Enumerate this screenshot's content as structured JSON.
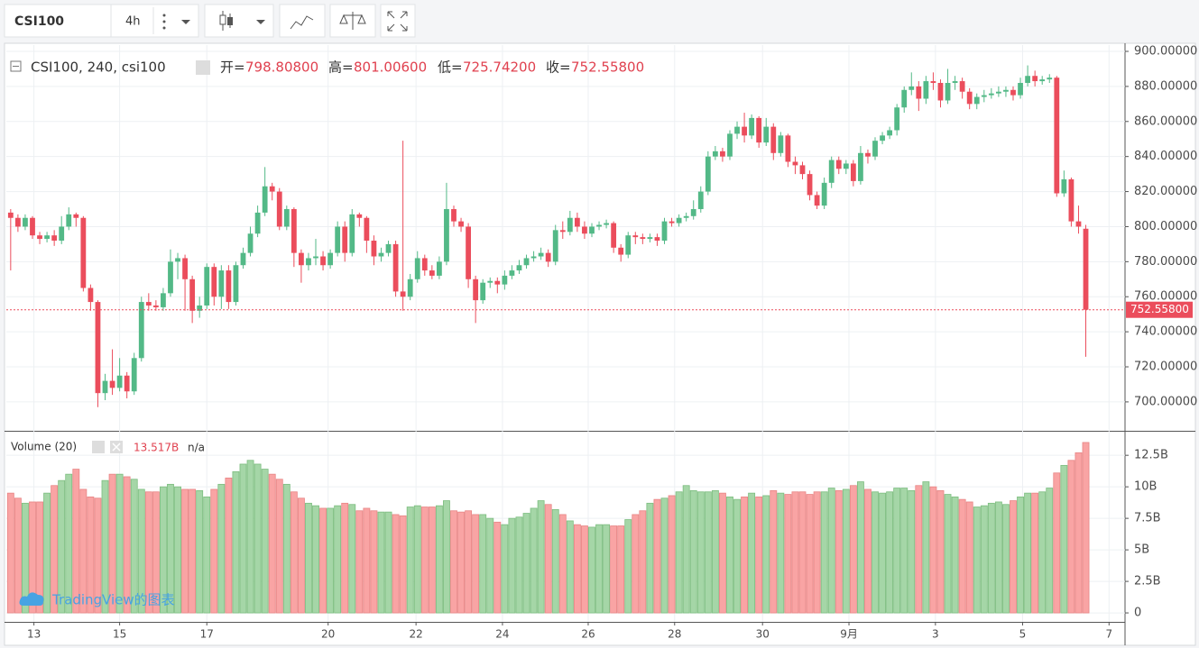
{
  "toolbar": {
    "symbol": "CSI100",
    "interval": "4h"
  },
  "watermark": "TradingView的图表",
  "chart_data": {
    "type": "candlestick",
    "legend": {
      "symbol": "CSI100, 240, csi100",
      "items": [
        {
          "label": "开=",
          "value": "798.80800"
        },
        {
          "label": "高=",
          "value": "801.00600"
        },
        {
          "label": "低=",
          "value": "725.74200"
        },
        {
          "label": "收=",
          "value": "752.55800"
        }
      ]
    },
    "up_color": "#53b987",
    "down_color": "#eb4d5c",
    "open": [
      808,
      805,
      800,
      805,
      795,
      793,
      795,
      792,
      800,
      807,
      805,
      765,
      757,
      705,
      712,
      708,
      715,
      706,
      725,
      757,
      755,
      754,
      762,
      780,
      782,
      770,
      752,
      755,
      777,
      760,
      775,
      757,
      778,
      785,
      796,
      808,
      823,
      820,
      800,
      810,
      785,
      778,
      782,
      783,
      778,
      785,
      800,
      785,
      807,
      805,
      792,
      783,
      785,
      790,
      763,
      760,
      770,
      782,
      775,
      772,
      780,
      810,
      803,
      800,
      770,
      758,
      768,
      769,
      767,
      772,
      775,
      778,
      782,
      783,
      785,
      780,
      798,
      797,
      805,
      800,
      796,
      800,
      801,
      802,
      788,
      784,
      795,
      794,
      793,
      794,
      792,
      803,
      802,
      805,
      806,
      810,
      820,
      840,
      843,
      840,
      853,
      857,
      852,
      862,
      848,
      857,
      842,
      852,
      837,
      835,
      830,
      818,
      812,
      825,
      838,
      833,
      836,
      826,
      842,
      840,
      849,
      852,
      855,
      868,
      878,
      880,
      873,
      883,
      882,
      872,
      882,
      883,
      877,
      870,
      874,
      875,
      876,
      877,
      878,
      875,
      882,
      886,
      883,
      884,
      885,
      819,
      827,
      803,
      798.808
    ],
    "high": [
      810,
      807,
      807,
      806,
      797,
      797,
      798,
      806,
      811,
      808,
      806,
      767,
      758,
      716,
      730,
      725,
      717,
      728,
      760,
      762,
      758,
      765,
      787,
      785,
      784,
      772,
      760,
      779,
      779,
      778,
      778,
      780,
      788,
      800,
      812,
      834,
      825,
      822,
      812,
      811,
      787,
      785,
      793,
      786,
      787,
      803,
      803,
      810,
      808,
      806,
      795,
      788,
      792,
      792,
      849,
      773,
      786,
      784,
      778,
      783,
      825,
      812,
      805,
      802,
      772,
      770,
      771,
      771,
      775,
      778,
      781,
      784,
      786,
      788,
      787,
      801,
      803,
      809,
      808,
      803,
      802,
      803,
      804,
      803,
      790,
      797,
      797,
      796,
      796,
      796,
      805,
      805,
      807,
      808,
      815,
      823,
      843,
      846,
      845,
      855,
      860,
      865,
      864,
      863,
      862,
      859,
      854,
      853,
      840,
      837,
      832,
      820,
      828,
      840,
      840,
      838,
      838,
      846,
      844,
      851,
      854,
      857,
      870,
      880,
      888,
      883,
      886,
      888,
      884,
      890,
      886,
      885,
      879,
      876,
      878,
      879,
      880,
      880,
      880,
      885,
      892,
      889,
      886,
      887,
      886,
      832,
      828,
      812,
      801.006
    ],
    "low": [
      775,
      797,
      798,
      793,
      790,
      791,
      789,
      790,
      798,
      800,
      763,
      752,
      697,
      701,
      704,
      706,
      702,
      704,
      723,
      752,
      752,
      752,
      760,
      770,
      752,
      745,
      748,
      753,
      755,
      753,
      753,
      755,
      776,
      783,
      794,
      806,
      815,
      798,
      798,
      777,
      768,
      775,
      778,
      775,
      776,
      783,
      780,
      783,
      800,
      785,
      778,
      780,
      783,
      760,
      752,
      758,
      768,
      772,
      770,
      770,
      778,
      800,
      797,
      765,
      745,
      756,
      765,
      762,
      764,
      770,
      773,
      776,
      780,
      781,
      777,
      778,
      793,
      795,
      797,
      793,
      794,
      798,
      799,
      785,
      780,
      782,
      790,
      790,
      791,
      789,
      790,
      800,
      800,
      803,
      804,
      808,
      818,
      838,
      837,
      838,
      850,
      848,
      850,
      845,
      846,
      838,
      840,
      834,
      830,
      827,
      815,
      810,
      810,
      822,
      830,
      830,
      823,
      824,
      836,
      838,
      847,
      850,
      852,
      865,
      875,
      866,
      870,
      878,
      868,
      870,
      878,
      873,
      867,
      867,
      871,
      873,
      874,
      874,
      872,
      873,
      880,
      880,
      881,
      882,
      817,
      817,
      800,
      796,
      725.742
    ],
    "close": [
      805,
      800,
      805,
      795,
      793,
      795,
      792,
      800,
      807,
      805,
      765,
      757,
      705,
      712,
      708,
      715,
      706,
      725,
      757,
      755,
      754,
      762,
      780,
      782,
      770,
      752,
      755,
      777,
      760,
      775,
      757,
      778,
      785,
      796,
      808,
      823,
      820,
      800,
      810,
      785,
      778,
      782,
      783,
      778,
      785,
      800,
      785,
      807,
      805,
      792,
      783,
      785,
      790,
      763,
      760,
      770,
      782,
      775,
      772,
      780,
      810,
      803,
      800,
      770,
      758,
      768,
      769,
      767,
      772,
      775,
      778,
      782,
      783,
      785,
      780,
      798,
      797,
      805,
      800,
      796,
      800,
      801,
      802,
      788,
      784,
      795,
      794,
      793,
      794,
      792,
      803,
      802,
      805,
      806,
      810,
      820,
      840,
      843,
      840,
      853,
      857,
      852,
      862,
      848,
      857,
      842,
      852,
      837,
      835,
      830,
      818,
      812,
      825,
      838,
      833,
      836,
      826,
      842,
      840,
      849,
      852,
      855,
      868,
      878,
      880,
      873,
      883,
      882,
      872,
      882,
      883,
      877,
      870,
      874,
      875,
      876,
      877,
      878,
      875,
      882,
      886,
      883,
      884,
      885,
      819,
      827,
      803,
      800,
      752.558
    ],
    "last_price": {
      "value": 752.558,
      "label": "752.55800"
    },
    "ylim": [
      683.5,
      903.6
    ],
    "yticks": [
      {
        "value": 700,
        "label": "700.00000"
      },
      {
        "value": 720,
        "label": "720.00000"
      },
      {
        "value": 740,
        "label": "740.00000"
      },
      {
        "value": 760,
        "label": "760.00000"
      },
      {
        "value": 780,
        "label": "780.00000"
      },
      {
        "value": 800,
        "label": "800.00000"
      },
      {
        "value": 820,
        "label": "820.00000"
      },
      {
        "value": 840,
        "label": "840.00000"
      },
      {
        "value": 860,
        "label": "860.00000"
      },
      {
        "value": 880,
        "label": "880.00000"
      },
      {
        "value": 900,
        "label": "900.00000"
      }
    ],
    "xlim": [
      -0.6,
      153.4
    ],
    "xticks": [
      {
        "value": 3.2,
        "label": "13"
      },
      {
        "value": 15,
        "label": "15"
      },
      {
        "value": 27,
        "label": "17"
      },
      {
        "value": 43.7,
        "label": "20"
      },
      {
        "value": 55.8,
        "label": "22"
      },
      {
        "value": 67.7,
        "label": "24"
      },
      {
        "value": 79.5,
        "label": "26"
      },
      {
        "value": 91.4,
        "label": "28"
      },
      {
        "value": 103.5,
        "label": "30"
      },
      {
        "value": 115.4,
        "label": "9月"
      },
      {
        "value": 127.3,
        "label": "3"
      },
      {
        "value": 139.3,
        "label": "5"
      },
      {
        "value": 151.2,
        "label": "7"
      }
    ],
    "grid": true,
    "volume_title": "Volume (20)",
    "volume_last": "13.517B",
    "volume_ma": "n/a",
    "volume_up_color": "#a5d6a7",
    "volume_down_color": "#f9a4a4",
    "volume": [
      9.5,
      9.1,
      8.7,
      8.8,
      8.8,
      9.5,
      10.1,
      10.5,
      11,
      11.4,
      9.8,
      9.2,
      9.1,
      10.5,
      11,
      11,
      10.8,
      10.6,
      9.8,
      9.6,
      9.6,
      10,
      10.2,
      10,
      9.8,
      9.8,
      9.7,
      9.2,
      9.8,
      10.2,
      10.7,
      11.2,
      11.8,
      12.1,
      11.8,
      11.4,
      11,
      10.6,
      10.2,
      9.6,
      9.1,
      8.7,
      8.5,
      8.3,
      8.3,
      8.5,
      8.7,
      8.6,
      8.1,
      8.3,
      8.1,
      8,
      8,
      7.8,
      7.7,
      8.4,
      8.5,
      8.4,
      8.4,
      8.5,
      8.9,
      8.1,
      8,
      8.1,
      7.8,
      7.8,
      7.5,
      7.2,
      7.0,
      7.5,
      7.6,
      7.9,
      8.3,
      8.9,
      8.6,
      8.2,
      7.8,
      7.3,
      7.0,
      6.9,
      6.8,
      7.0,
      7.0,
      6.9,
      6.9,
      7.4,
      7.8,
      8.1,
      8.7,
      9.0,
      9.1,
      9.3,
      9.6,
      10.1,
      9.7,
      9.6,
      9.6,
      9.7,
      9.5,
      9.2,
      9.0,
      9.2,
      9.5,
      9.2,
      9.3,
      9.7,
      9.5,
      9.4,
      9.6,
      9.6,
      9.4,
      9.6,
      9.6,
      9.9,
      9.7,
      9.8,
      10.1,
      10.4,
      9.8,
      9.6,
      9.5,
      9.6,
      9.9,
      9.9,
      9.7,
      10.1,
      10.4,
      10.0,
      9.7,
      9.4,
      9.2,
      9.0,
      8.8,
      8.4,
      8.5,
      8.7,
      8.8,
      8.6,
      8.9,
      9.2,
      9.5,
      9.5,
      9.6,
      9.9,
      11.1,
      11.7,
      12.1,
      12.7,
      13.517
    ],
    "volume_ylim": [
      -0.71,
      14.3
    ],
    "volume_ticks": [
      0,
      {
        "value": 2.5,
        "label": "2.5B"
      },
      {
        "value": 5,
        "label": "5B"
      },
      {
        "value": 7.5,
        "label": "7.5B"
      },
      {
        "value": 10,
        "label": "10B"
      },
      {
        "value": 12.5,
        "label": "12.5B"
      }
    ]
  }
}
